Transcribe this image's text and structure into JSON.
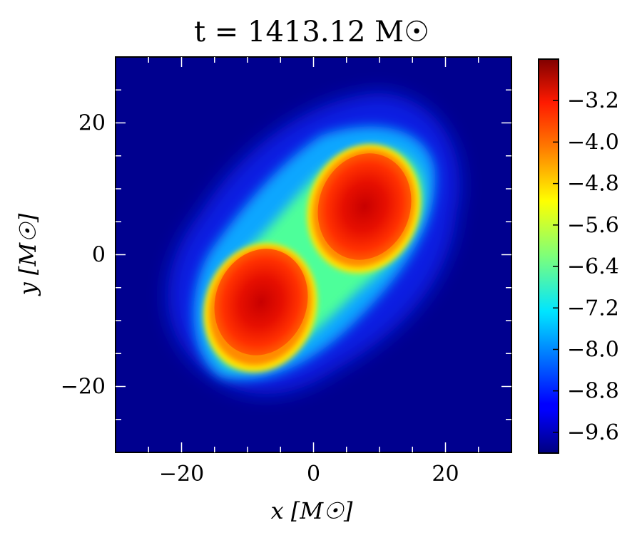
{
  "chart_data": {
    "type": "heatmap",
    "title": "t = 1413.12 M☉",
    "xlabel": "x [M☉]",
    "ylabel": "y [M☉]",
    "xlim": [
      -30,
      30
    ],
    "ylim": [
      -30,
      30
    ],
    "x_ticks": [
      -20,
      0,
      20
    ],
    "y_ticks": [
      -20,
      0,
      20
    ],
    "x_tick_labels": [
      "−20",
      "0",
      "20"
    ],
    "y_tick_labels": [
      "−20",
      "0",
      "20"
    ],
    "colormap": "jet",
    "colorbar": {
      "range": [
        -10.0,
        -2.4
      ],
      "ticks": [
        -3.2,
        -4.0,
        -4.8,
        -5.6,
        -6.4,
        -7.2,
        -8.0,
        -8.8,
        -9.6
      ],
      "tick_labels": [
        "−3.2",
        "−4.0",
        "−4.8",
        "−5.6",
        "−6.4",
        "−7.2",
        "−8.0",
        "−8.8",
        "−9.6"
      ],
      "placement": "right"
    },
    "sources": [
      {
        "name": "",
        "center": [
          -8,
          -6.5
        ],
        "peak_value": -2.9
      },
      {
        "name": "",
        "center": [
          8,
          6.5
        ],
        "peak_value": -2.9
      }
    ],
    "background_value": -10.0,
    "grid": false
  }
}
